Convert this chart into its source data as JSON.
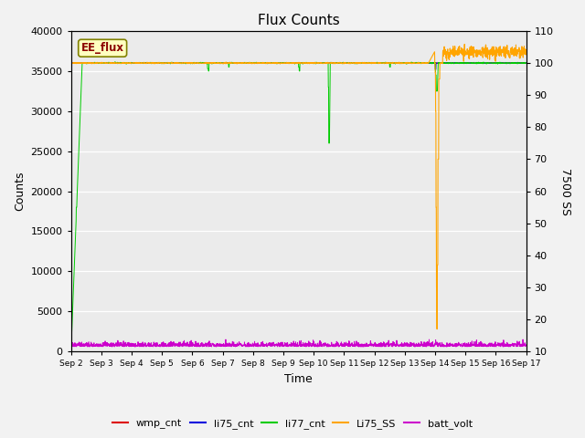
{
  "title": "Flux Counts",
  "xlabel": "Time",
  "ylabel_left": "Counts",
  "ylabel_right": "7500 SS",
  "ylim_left": [
    0,
    40000
  ],
  "ylim_right": [
    10,
    110
  ],
  "annotation_text": "EE_flux",
  "plot_bg": "#ebebeb",
  "fig_bg": "#f2f2f2",
  "series_colors": {
    "wmp_cnt": "#dd0000",
    "li75_cnt": "#0000dd",
    "li77_cnt": "#00cc00",
    "Li75_SS": "#ffa500",
    "batt_volt": "#cc00cc"
  },
  "x_tick_labels": [
    "Sep 2",
    "Sep 3",
    "Sep 4",
    "Sep 5",
    "Sep 6",
    "Sep 7",
    "Sep 8",
    "Sep 9",
    "Sep 10",
    "Sep 11",
    "Sep 12",
    "Sep 13",
    "Sep 14",
    "Sep 15",
    "Sep 16",
    "Sep 17"
  ],
  "left_yticks": [
    0,
    5000,
    10000,
    15000,
    20000,
    25000,
    30000,
    35000,
    40000
  ],
  "right_yticks": [
    10,
    20,
    30,
    40,
    50,
    60,
    70,
    80,
    90,
    100,
    110
  ]
}
